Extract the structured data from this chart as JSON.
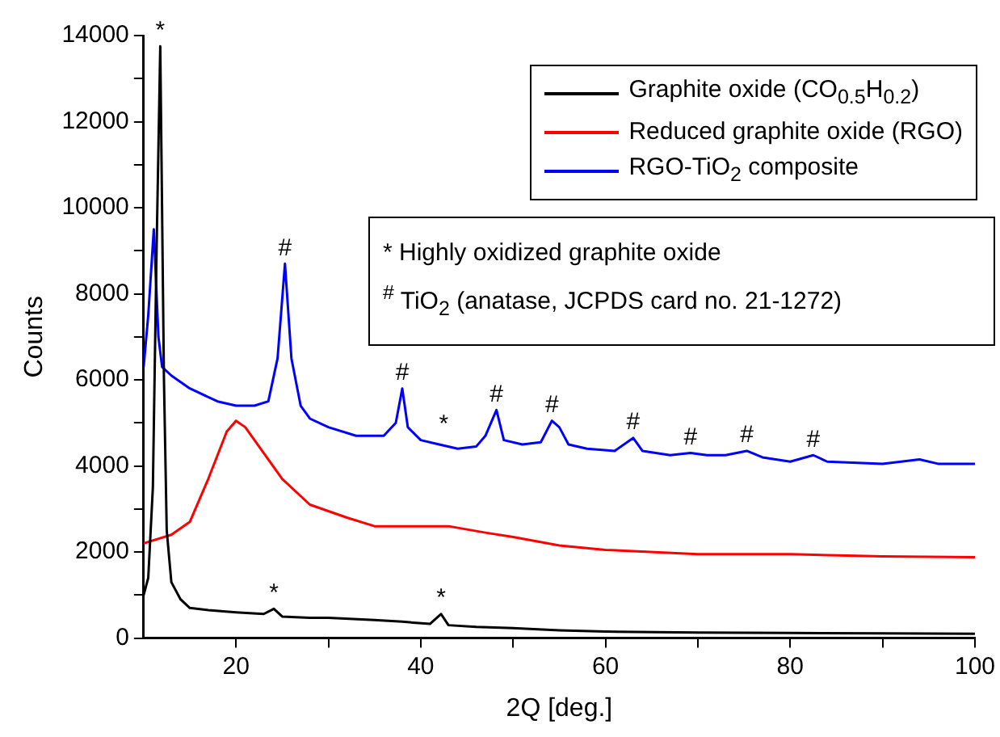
{
  "chart_data": {
    "type": "line",
    "xlabel": "2Q [deg.]",
    "ylabel": "Counts",
    "xlim": [
      10,
      100
    ],
    "ylim": [
      0,
      14000
    ],
    "xticks": [
      20,
      {
        "value": 30,
        "label": null
      },
      40,
      {
        "value": 50,
        "label": null
      },
      60,
      {
        "value": 70,
        "label": null
      },
      80,
      {
        "value": 90,
        "label": null
      },
      100
    ],
    "yticks": [
      0,
      {
        "value": 1000,
        "label": null
      },
      2000,
      {
        "value": 3000,
        "label": null
      },
      4000,
      {
        "value": 5000,
        "label": null
      },
      6000,
      {
        "value": 7000,
        "label": null
      },
      8000,
      {
        "value": 9000,
        "label": null
      },
      10000,
      {
        "value": 11000,
        "label": null
      },
      12000,
      {
        "value": 13000,
        "label": null
      },
      14000
    ],
    "grid": false,
    "legend": "top right",
    "marker": "none",
    "line_style": "solid",
    "series": [
      {
        "name": "Graphite oxide (CO$_{0.5}$H$_{0.2}$)",
        "color": "#000000",
        "x": [
          10,
          10.5,
          11,
          11.4,
          11.8,
          12.2,
          12.5,
          13,
          14,
          15,
          17,
          20,
          23,
          24.1,
          25,
          28,
          30,
          35,
          38,
          41,
          42.2,
          43,
          46,
          50,
          55,
          60,
          70,
          80,
          90,
          100
        ],
        "values": [
          1000,
          1400,
          3500,
          9000,
          13750,
          6000,
          2500,
          1300,
          900,
          700,
          650,
          600,
          560,
          680,
          500,
          470,
          470,
          420,
          380,
          330,
          560,
          300,
          260,
          230,
          180,
          150,
          130,
          120,
          110,
          100
        ]
      },
      {
        "name": "Reduced graphite oxide (RGO)",
        "color": "#ff0000",
        "x": [
          10,
          13,
          15,
          17,
          19,
          20,
          21,
          23,
          25,
          28,
          32,
          35,
          40,
          43,
          47,
          50,
          55,
          60,
          70,
          80,
          90,
          100
        ],
        "values": [
          2200,
          2400,
          2700,
          3700,
          4800,
          5050,
          4900,
          4300,
          3700,
          3100,
          2800,
          2600,
          2600,
          2600,
          2450,
          2350,
          2150,
          2050,
          1950,
          1950,
          1900,
          1880
        ]
      },
      {
        "name": "RGO-TiO$_{2}$ composite",
        "color": "#0000ff",
        "x": [
          10,
          10.5,
          11.1,
          11.6,
          12,
          13,
          15,
          18,
          20,
          22,
          23.5,
          24.5,
          25.3,
          26,
          27,
          28,
          30,
          33,
          36,
          37.3,
          38,
          38.6,
          40,
          42,
          44,
          46,
          47,
          48.2,
          49,
          51,
          53,
          54.2,
          55,
          56,
          58,
          61,
          63,
          64,
          67,
          69.2,
          71,
          73,
          75.3,
          77,
          80,
          82.5,
          84,
          90,
          94,
          96,
          100
        ],
        "values": [
          6300,
          7500,
          9500,
          7000,
          6300,
          6100,
          5800,
          5500,
          5400,
          5400,
          5500,
          6500,
          8700,
          6500,
          5400,
          5100,
          4900,
          4700,
          4700,
          5000,
          5800,
          4900,
          4600,
          4500,
          4400,
          4450,
          4700,
          5300,
          4600,
          4500,
          4550,
          5050,
          4900,
          4500,
          4400,
          4350,
          4650,
          4350,
          4250,
          4300,
          4250,
          4250,
          4350,
          4200,
          4100,
          4250,
          4100,
          4050,
          4150,
          4050,
          4050
        ]
      }
    ],
    "annotations": [
      "* Highly oxidized graphite oxide",
      "$^{#}$ TiO$_{2}$ (anatase, JCPDS card no. 21-1272)",
      {
        "text": "*",
        "x": 11.8,
        "y": 13750
      },
      {
        "text": "*",
        "x": 24.1,
        "y": 680
      },
      {
        "text": "*",
        "x": 42.2,
        "y": 560
      },
      {
        "text": "*",
        "x": 42.5,
        "y": 4600
      },
      {
        "text": "#",
        "x": 25.3,
        "y": 8700
      },
      {
        "text": "#",
        "x": 38,
        "y": 5800
      },
      {
        "text": "#",
        "x": 48.2,
        "y": 5300
      },
      {
        "text": "#",
        "x": 54.2,
        "y": 5050
      },
      {
        "text": "#",
        "x": 63,
        "y": 4650
      },
      {
        "text": "#",
        "x": 69.2,
        "y": 4300
      },
      {
        "text": "#",
        "x": 75.3,
        "y": 4350
      },
      {
        "text": "#",
        "x": 82.5,
        "y": 4250
      }
    ]
  }
}
